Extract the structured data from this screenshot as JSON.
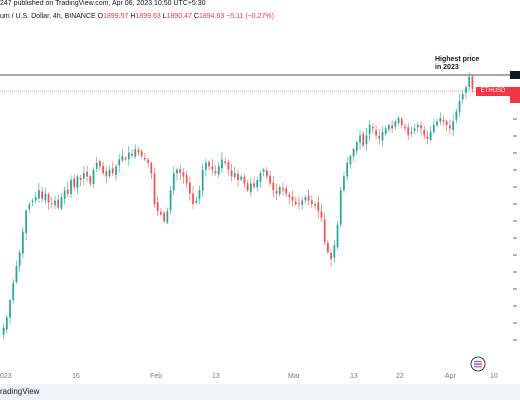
{
  "header": {
    "line1": "247 published on TradingView.com, Apr 06, 2023 10:50 UTC+5:30",
    "symbol": "um / U.S. Dollar, 4h, BINANCE",
    "o_label": "O",
    "o_val": "1899.57",
    "h_label": "H",
    "h_val": "1899.63",
    "l_label": "L",
    "l_val": "1890.47",
    "c_label": "C",
    "c_val": "1894.63",
    "change": "−5.11 (−0.27%)"
  },
  "annotation": {
    "line1": "Highest price",
    "line2": "in 2023"
  },
  "price_label": "ETHUSD",
  "footer": "radingView",
  "colors": {
    "up": "#26a69a",
    "down": "#ef5350",
    "hline": "#131722",
    "priceline": "#f23645"
  },
  "chart_data": {
    "type": "candlestick",
    "x_ticks": [
      "023",
      "16",
      "Feb",
      "13",
      "Mar",
      "13",
      "22",
      "Apr",
      "10"
    ],
    "close_path": [
      1200,
      1230,
      1280,
      1330,
      1380,
      1420,
      1480,
      1540,
      1560,
      1570,
      1580,
      1600,
      1575,
      1590,
      1565,
      1560,
      1570,
      1550,
      1580,
      1600,
      1590,
      1630,
      1610,
      1640,
      1630,
      1650,
      1640,
      1620,
      1660,
      1680,
      1670,
      1650,
      1640,
      1660,
      1650,
      1670,
      1690,
      1700,
      1690,
      1710,
      1700,
      1720,
      1710,
      1700,
      1690,
      1680,
      1650,
      1560,
      1540,
      1530,
      1510,
      1540,
      1600,
      1650,
      1660,
      1650,
      1640,
      1620,
      1590,
      1560,
      1570,
      1600,
      1660,
      1680,
      1670,
      1660,
      1650,
      1670,
      1690,
      1680,
      1660,
      1640,
      1650,
      1630,
      1640,
      1620,
      1600,
      1620,
      1610,
      1630,
      1650,
      1660,
      1640,
      1620,
      1600,
      1590,
      1610,
      1600,
      1590,
      1580,
      1570,
      1560,
      1560,
      1570,
      1580,
      1570,
      1560,
      1560,
      1540,
      1520,
      1450,
      1420,
      1400,
      1440,
      1500,
      1600,
      1640,
      1680,
      1700,
      1720,
      1740,
      1760,
      1730,
      1760,
      1790,
      1780,
      1760,
      1750,
      1770,
      1780,
      1790,
      1780,
      1800,
      1810,
      1790,
      1780,
      1760,
      1770,
      1780,
      1790,
      1780,
      1760,
      1750,
      1770,
      1790,
      1800,
      1810,
      1800,
      1790,
      1780,
      1800,
      1830,
      1860,
      1880,
      1900,
      1930,
      1895
    ],
    "highest_price_annotation": "Highest price in 2023"
  }
}
